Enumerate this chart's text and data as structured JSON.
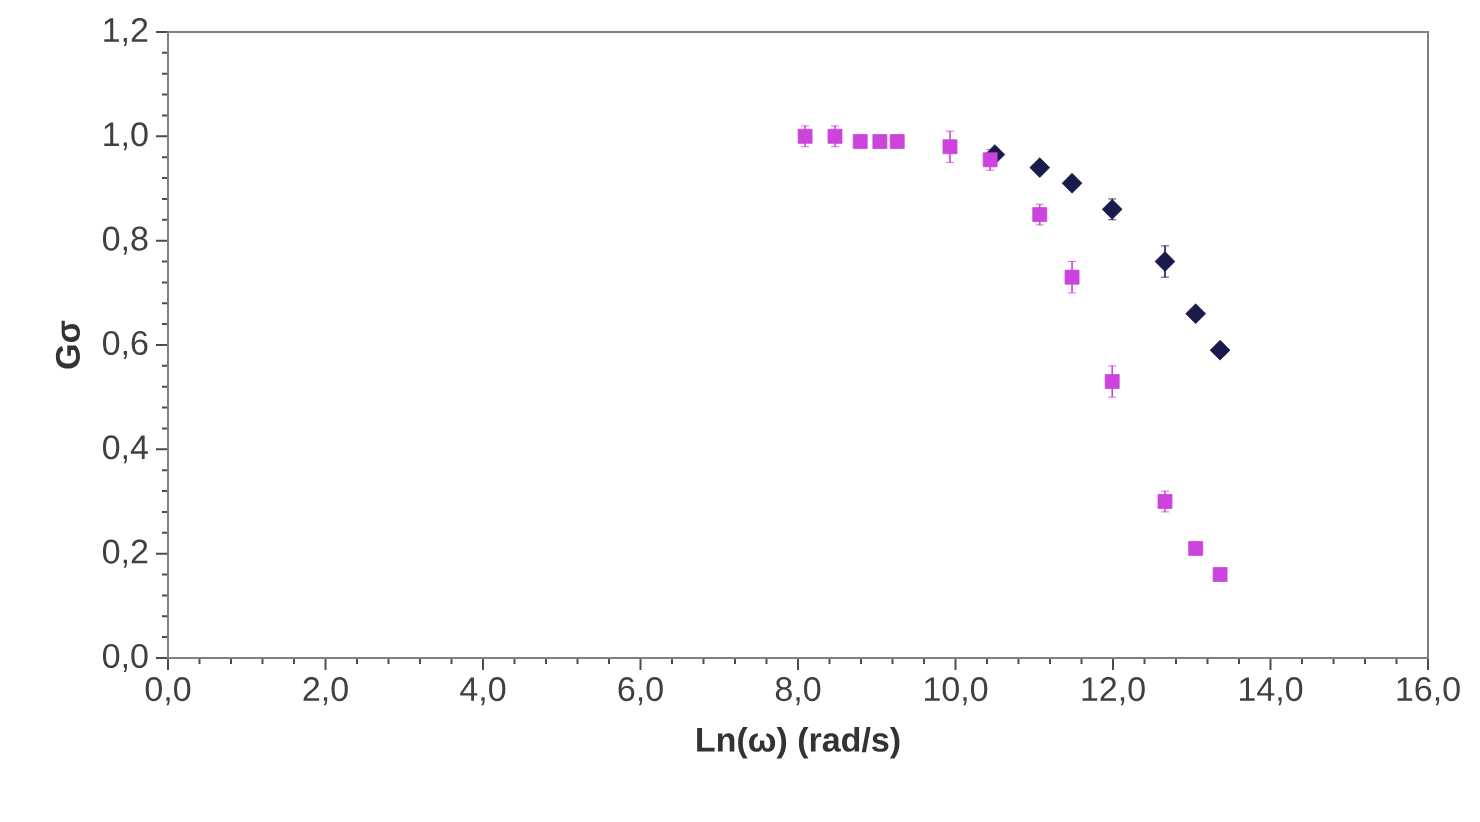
{
  "chart_data": {
    "type": "scatter",
    "xlabel": "Ln(ω) (rad/s)",
    "ylabel": "Gσ",
    "series": [
      {
        "color": "#cc44dd",
        "marker": "square",
        "x": [
          8.09,
          8.47,
          8.79,
          9.04,
          9.26,
          9.93,
          10.44,
          11.07,
          11.48,
          11.99,
          12.66,
          13.05,
          13.36
        ],
        "values": [
          1.0,
          1.0,
          0.99,
          0.99,
          0.99,
          0.98,
          0.955,
          0.85,
          0.73,
          0.53,
          0.3,
          0.21,
          0.16
        ],
        "errors": [
          0.02,
          0.02,
          0.01,
          0.01,
          0.01,
          0.03,
          0.02,
          0.02,
          0.03,
          0.03,
          0.02,
          0.01,
          0.01
        ]
      },
      {
        "color": "#1a1a4d",
        "marker": "diamond",
        "x": [
          10.5,
          11.07,
          11.48,
          11.99,
          12.66,
          13.05,
          13.36
        ],
        "values": [
          0.965,
          0.94,
          0.91,
          0.86,
          0.76,
          0.66,
          0.59
        ],
        "errors": [
          0.01,
          0.01,
          0.01,
          0.02,
          0.03,
          0.01,
          0.01
        ]
      }
    ],
    "xlim": [
      0,
      16
    ],
    "ylim": [
      0,
      1.2
    ],
    "xticks": [
      {
        "value": 0,
        "label": "0,0"
      },
      {
        "value": 2,
        "label": "2,0"
      },
      {
        "value": 4,
        "label": "4,0"
      },
      {
        "value": 6,
        "label": "6,0"
      },
      {
        "value": 8,
        "label": "8,0"
      },
      {
        "value": 10,
        "label": "10,0"
      },
      {
        "value": 12,
        "label": "12,0"
      },
      {
        "value": 14,
        "label": "14,0"
      },
      {
        "value": 16,
        "label": "16,0"
      }
    ],
    "yticks": [
      {
        "value": 0,
        "label": "0,0"
      },
      {
        "value": 0.2,
        "label": "0,2"
      },
      {
        "value": 0.4,
        "label": "0,4"
      },
      {
        "value": 0.6,
        "label": "0,6"
      },
      {
        "value": 0.8,
        "label": "0,8"
      },
      {
        "value": 1.0,
        "label": "1,0"
      },
      {
        "value": 1.2,
        "label": "1,2"
      }
    ],
    "grid": false
  }
}
